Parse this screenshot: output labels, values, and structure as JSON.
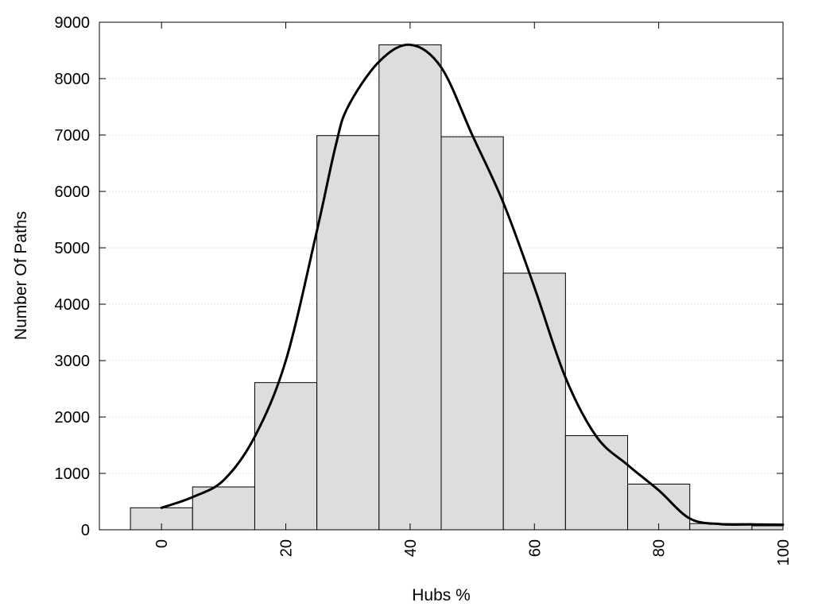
{
  "chart_data": {
    "type": "bar",
    "subtype": "histogram-with-density-curve",
    "title": "",
    "xlabel": "Hubs %",
    "ylabel": "Number Of Paths",
    "xlim": [
      -10,
      100
    ],
    "ylim": [
      0,
      9000
    ],
    "x_ticks": [
      0,
      20,
      40,
      60,
      80,
      100
    ],
    "x_tick_rotation": "vertical",
    "y_ticks": [
      0,
      1000,
      2000,
      3000,
      4000,
      5000,
      6000,
      7000,
      8000,
      9000
    ],
    "grid": "horizontal-dotted",
    "legend": "none",
    "bin_width": 10,
    "bins": [
      {
        "center": 0,
        "value": 390
      },
      {
        "center": 10,
        "value": 760
      },
      {
        "center": 20,
        "value": 2610
      },
      {
        "center": 30,
        "value": 6990
      },
      {
        "center": 40,
        "value": 8600
      },
      {
        "center": 50,
        "value": 6970
      },
      {
        "center": 60,
        "value": 4550
      },
      {
        "center": 70,
        "value": 1670
      },
      {
        "center": 80,
        "value": 810
      },
      {
        "center": 90,
        "value": 110
      },
      {
        "center": 100,
        "value": 70
      }
    ],
    "curve": {
      "x": [
        0,
        5,
        10,
        15,
        20,
        25,
        28,
        30,
        35,
        40,
        45,
        50,
        55,
        60,
        65,
        70,
        75,
        80,
        85,
        90,
        95,
        100
      ],
      "y": [
        390,
        580,
        880,
        1650,
        3000,
        5300,
        6800,
        7500,
        8300,
        8600,
        8200,
        7000,
        5800,
        4300,
        2700,
        1650,
        1150,
        700,
        200,
        100,
        95,
        90
      ]
    },
    "colors": {
      "bar_fill": "#dddddd",
      "bar_stroke": "#000000",
      "curve": "#000000",
      "grid": "#cccccc",
      "frame": "#000000"
    }
  }
}
